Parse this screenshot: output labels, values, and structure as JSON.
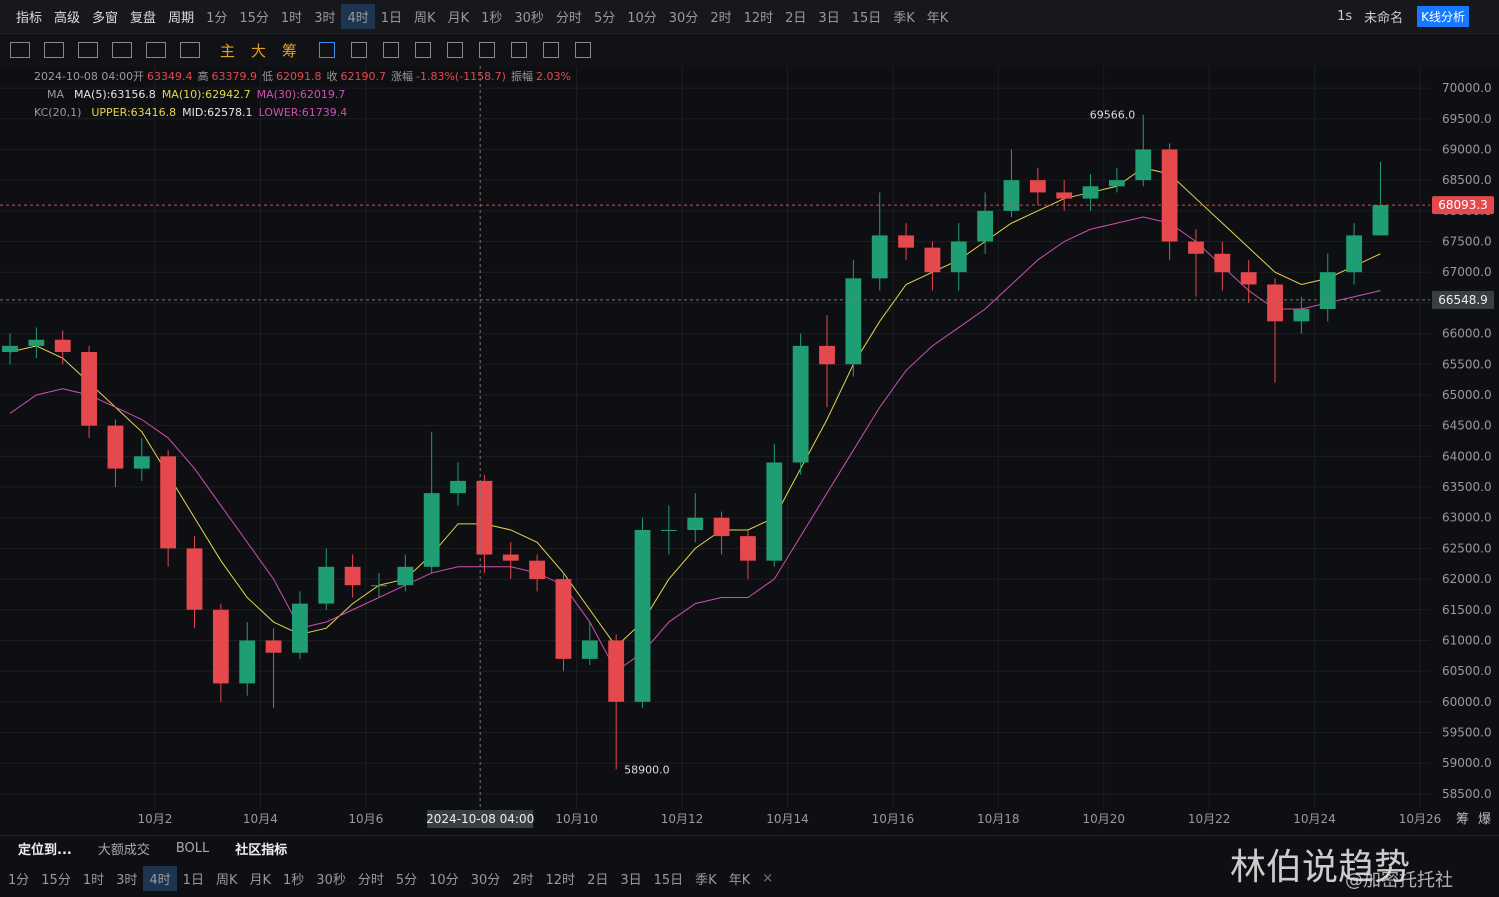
{
  "toolbar": {
    "tools": [
      "指标",
      "高级",
      "多窗",
      "复盘",
      "周期"
    ],
    "periods": [
      {
        "label": "1分"
      },
      {
        "label": "15分"
      },
      {
        "label": "1时"
      },
      {
        "label": "3时"
      },
      {
        "label": "4时",
        "active": true
      },
      {
        "label": "1日"
      },
      {
        "label": "周K"
      },
      {
        "label": "月K"
      },
      {
        "label": "1秒"
      },
      {
        "label": "30秒"
      },
      {
        "label": "分时"
      },
      {
        "label": "5分"
      },
      {
        "label": "10分"
      },
      {
        "label": "30分"
      },
      {
        "label": "2时"
      },
      {
        "label": "12时"
      },
      {
        "label": "2日"
      },
      {
        "label": "3日"
      },
      {
        "label": "15日"
      },
      {
        "label": "季K"
      },
      {
        "label": "年K"
      }
    ],
    "right": [
      "1s",
      "未命名"
    ],
    "analysis": "K线分析"
  },
  "drawing_toolbar": {
    "items": [
      "主",
      "大",
      "筹"
    ]
  },
  "legend": {
    "time": "2024-10-08 04:00",
    "ohlc": [
      [
        "开",
        "63349.4"
      ],
      [
        "高",
        "63379.9"
      ],
      [
        "低",
        "62091.8"
      ],
      [
        "收",
        "62190.7"
      ],
      [
        "涨幅",
        "-1.83%(-1158.7)"
      ],
      [
        "振幅",
        "2.03%"
      ]
    ],
    "ma": {
      "title": "MA",
      "items": [
        {
          "text": "MA(5):63156.8",
          "color": "#e6e6e6"
        },
        {
          "text": "MA(10):62942.7",
          "color": "#e8d44d"
        },
        {
          "text": "MA(30):62019.7",
          "color": "#d14fb3"
        }
      ]
    },
    "kc": {
      "title": "KC(20,1)",
      "items": [
        {
          "text": "UPPER:63416.8",
          "color": "#e8d44d"
        },
        {
          "text": "MID:62578.1",
          "color": "#e6e6e6"
        },
        {
          "text": "LOWER:61739.4",
          "color": "#d14fb3"
        }
      ]
    }
  },
  "chart_data": {
    "type": "candlestick",
    "x": [
      -0.75,
      -0.25,
      0.25,
      0.75,
      1.25,
      1.75,
      2.25,
      2.75,
      3.25,
      3.75,
      4.25,
      4.75,
      5.25,
      5.75,
      6.25,
      6.75,
      7.25,
      7.75,
      8.25,
      8.75,
      9.25,
      9.75,
      10.25,
      10.75,
      11.25,
      11.75,
      12.25,
      12.75,
      13.25,
      13.75,
      14.25,
      14.75,
      15.25,
      15.75,
      16.25,
      16.75,
      17.25,
      17.75,
      18.25,
      18.75,
      19.25,
      19.75,
      20.25,
      20.75,
      21.25,
      21.75,
      22.25,
      22.75,
      23.25,
      23.75,
      24.25,
      24.75,
      25.25
    ],
    "open": [
      65700,
      65800,
      65900,
      65700,
      64500,
      63800,
      64000,
      62500,
      61500,
      60300,
      61000,
      60800,
      61600,
      62200,
      61900,
      61900,
      62200,
      63400,
      63600,
      62400,
      62300,
      62000,
      60700,
      61000,
      60000,
      62800,
      62800,
      63000,
      62700,
      62300,
      63900,
      65800,
      65500,
      66900,
      67600,
      67400,
      67000,
      67500,
      68000,
      68500,
      68300,
      68200,
      68400,
      68500,
      69000,
      67500,
      67300,
      67000,
      66800,
      66200,
      66400,
      67000,
      67600
    ],
    "high": [
      66000,
      66100,
      66050,
      65800,
      64600,
      64300,
      64100,
      62700,
      61600,
      61300,
      61200,
      61800,
      62500,
      62400,
      62100,
      62400,
      64400,
      63900,
      63700,
      62600,
      62400,
      62100,
      61300,
      61100,
      63000,
      63200,
      63400,
      63100,
      62800,
      64200,
      66000,
      66300,
      67200,
      68300,
      67800,
      67500,
      67800,
      68300,
      69000,
      68700,
      68500,
      68600,
      68700,
      69566,
      69100,
      67700,
      67500,
      67200,
      66900,
      66600,
      67300,
      67800,
      68800
    ],
    "low": [
      65500,
      65600,
      65500,
      64300,
      63500,
      63600,
      62200,
      61200,
      60000,
      60100,
      59900,
      60700,
      61500,
      61700,
      61700,
      61800,
      62100,
      63200,
      62100,
      62000,
      61800,
      60500,
      60600,
      58900,
      59900,
      62400,
      62600,
      62400,
      62000,
      62200,
      63700,
      64800,
      65300,
      66700,
      67200,
      66700,
      66700,
      67300,
      67900,
      68100,
      68000,
      68000,
      68300,
      68400,
      67200,
      66600,
      66700,
      66500,
      65200,
      66000,
      66200,
      66800,
      67600
    ],
    "close": [
      65800,
      65900,
      65700,
      64500,
      63800,
      64000,
      62500,
      61500,
      60300,
      61000,
      60800,
      61600,
      62200,
      61900,
      61900,
      62200,
      63400,
      63600,
      62400,
      62300,
      62000,
      60700,
      61000,
      60000,
      62800,
      62800,
      63000,
      62700,
      62300,
      63900,
      65800,
      65500,
      66900,
      67600,
      67400,
      67000,
      67500,
      68000,
      68500,
      68300,
      68200,
      68400,
      68500,
      69000,
      67500,
      67300,
      67000,
      66800,
      66200,
      66400,
      67000,
      67600,
      68093.3
    ],
    "up_color": "#1f9e74",
    "down_color": "#e5484d",
    "series": [
      {
        "color": "#e8d44d",
        "values": [
          65700,
          65800,
          65600,
          65200,
          64800,
          64400,
          63700,
          63000,
          62300,
          61700,
          61300,
          61100,
          61200,
          61600,
          61900,
          62000,
          62400,
          62900,
          62900,
          62800,
          62600,
          62100,
          61500,
          60900,
          61300,
          62000,
          62500,
          62800,
          62800,
          63000,
          63800,
          64600,
          65500,
          66200,
          66800,
          67000,
          67200,
          67500,
          67800,
          68000,
          68200,
          68300,
          68400,
          68700,
          68600,
          68200,
          67800,
          67400,
          67000,
          66800,
          66900,
          67100,
          67300
        ]
      },
      {
        "color": "#d14fb3",
        "values": [
          64700,
          65000,
          65100,
          65000,
          64800,
          64600,
          64300,
          63800,
          63200,
          62600,
          62000,
          61200,
          61300,
          61500,
          61700,
          61900,
          62100,
          62200,
          62200,
          62200,
          62100,
          61900,
          61300,
          60500,
          60800,
          61300,
          61600,
          61700,
          61700,
          62000,
          62700,
          63400,
          64100,
          64800,
          65400,
          65800,
          66100,
          66400,
          66800,
          67200,
          67500,
          67700,
          67800,
          67900,
          67800,
          67500,
          67100,
          66700,
          66400,
          66400,
          66500,
          66600,
          66700
        ]
      }
    ],
    "xlim": [
      -0.94,
      26.19
    ],
    "xticks": [
      {
        "value": 2,
        "label": "10月2"
      },
      {
        "value": 4,
        "label": "10月4"
      },
      {
        "value": 6,
        "label": "10月6"
      },
      {
        "value": 10,
        "label": "10月10"
      },
      {
        "value": 12,
        "label": "10月12"
      },
      {
        "value": 14,
        "label": "10月14"
      },
      {
        "value": 16,
        "label": "10月16"
      },
      {
        "value": 18,
        "label": "10月18"
      },
      {
        "value": 20,
        "label": "10月20"
      },
      {
        "value": 22,
        "label": "10月22"
      },
      {
        "value": 24,
        "label": "10月24"
      },
      {
        "value": 26,
        "label": "10月26"
      }
    ],
    "ylim": [
      58270,
      70360
    ],
    "yticks": [
      {
        "value": 58500,
        "label": "58500.0"
      },
      {
        "value": 59000,
        "label": "59000.0"
      },
      {
        "value": 59500,
        "label": "59500.0"
      },
      {
        "value": 60000,
        "label": "60000.0"
      },
      {
        "value": 60500,
        "label": "60500.0"
      },
      {
        "value": 61000,
        "label": "61000.0"
      },
      {
        "value": 61500,
        "label": "61500.0"
      },
      {
        "value": 62000,
        "label": "62000.0"
      },
      {
        "value": 62500,
        "label": "62500.0"
      },
      {
        "value": 63000,
        "label": "63000.0"
      },
      {
        "value": 63500,
        "label": "63500.0"
      },
      {
        "value": 64000,
        "label": "64000.0"
      },
      {
        "value": 64500,
        "label": "64500.0"
      },
      {
        "value": 65000,
        "label": "65000.0"
      },
      {
        "value": 65500,
        "label": "65500.0"
      },
      {
        "value": 66000,
        "label": "66000.0"
      },
      {
        "value": 66500,
        "label": "66500.0"
      },
      {
        "value": 67000,
        "label": "67000.0"
      },
      {
        "value": 67500,
        "label": "67500.0"
      },
      {
        "value": 68000,
        "label": "68000.0"
      },
      {
        "value": 68500,
        "label": "68500.0"
      },
      {
        "value": 69000,
        "label": "69000.0"
      },
      {
        "value": 69500,
        "label": "69500.0"
      },
      {
        "value": 70000,
        "label": "70000.0"
      }
    ],
    "grid": true,
    "annotations": [
      {
        "x": 20.75,
        "value": 69566,
        "label": "69566.0",
        "side": "left"
      },
      {
        "x": 10.75,
        "value": 58900,
        "label": "58900.0",
        "side": "right"
      }
    ],
    "last_price": {
      "value": 68093.3,
      "label": "68093.3",
      "color": "#e5484d"
    },
    "crosshair": {
      "x": 8.17,
      "x_label": "2024-10-08 04:00",
      "y": 66548.9,
      "y_label": "66548.9"
    },
    "axis_extra": [
      "筹",
      "爆"
    ]
  },
  "bottom": {
    "items": [
      "定位到...",
      "大额成交",
      "BOLL",
      "社区指标"
    ]
  },
  "watermark": {
    "title": "林伯说趋势",
    "handle": "@加密托托社"
  }
}
